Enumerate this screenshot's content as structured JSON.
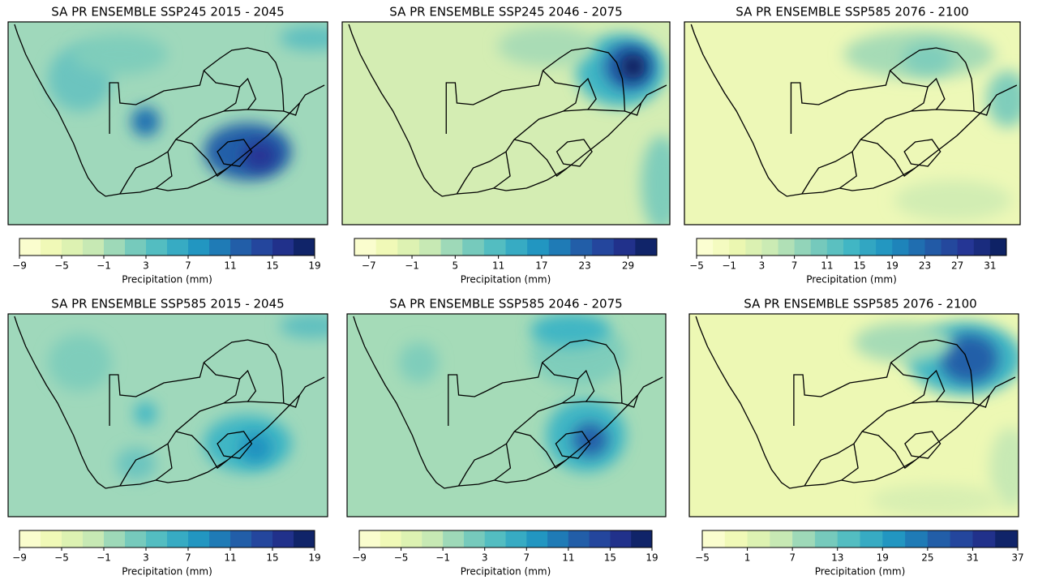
{
  "panels": [
    {
      "title": "SA PR ENSEMBLE SSP245 2015 - 2045",
      "colorbar": {
        "label": "Precipitation (mm)",
        "lim": [
          -9,
          19
        ],
        "ticks": [
          {
            "value": -9,
            "label": "−9"
          },
          {
            "value": -5,
            "label": "−5"
          },
          {
            "value": -1,
            "label": "−1"
          },
          3,
          7,
          11,
          15,
          19
        ],
        "colormap": "YlGnBu"
      }
    },
    {
      "title": "SA PR ENSEMBLE SSP245 2046 - 2075",
      "colorbar": {
        "label": "Precipitation (mm)",
        "lim": [
          -9,
          33
        ],
        "ticks": [
          {
            "value": -7,
            "label": "−7"
          },
          {
            "value": -1,
            "label": "−1"
          },
          5,
          11,
          17,
          23,
          29
        ],
        "colormap": "YlGnBu"
      }
    },
    {
      "title": "SA PR ENSEMBLE SSP585 2076 - 2100",
      "colorbar": {
        "label": "Precipitation (mm)",
        "lim": [
          -5,
          33
        ],
        "ticks": [
          {
            "value": -5,
            "label": "−5"
          },
          {
            "value": -1,
            "label": "−1"
          },
          3,
          7,
          11,
          15,
          19,
          23,
          27,
          31
        ],
        "colormap": "YlGnBu"
      }
    },
    {
      "title": "SA PR ENSEMBLE SSP585 2015 - 2045",
      "colorbar": {
        "label": "Precipitation (mm)",
        "lim": [
          -9,
          19
        ],
        "ticks": [
          {
            "value": -9,
            "label": "−9"
          },
          {
            "value": -5,
            "label": "−5"
          },
          {
            "value": -1,
            "label": "−1"
          },
          3,
          7,
          11,
          15,
          19
        ],
        "colormap": "YlGnBu"
      }
    },
    {
      "title": "SA PR ENSEMBLE SSP585 2046 - 2075",
      "colorbar": {
        "label": "Precipitation (mm)",
        "lim": [
          -9,
          19
        ],
        "ticks": [
          {
            "value": -9,
            "label": "−9"
          },
          {
            "value": -5,
            "label": "−5"
          },
          {
            "value": -1,
            "label": "−1"
          },
          3,
          7,
          11,
          15,
          19
        ],
        "colormap": "YlGnBu"
      }
    },
    {
      "title": "SA PR ENSEMBLE SSP585 2076 - 2100",
      "colorbar": {
        "label": "Precipitation (mm)",
        "lim": [
          -5,
          37
        ],
        "ticks": [
          {
            "value": -5,
            "label": "−5"
          },
          1,
          7,
          13,
          19,
          25,
          31,
          37
        ],
        "colormap": "YlGnBu"
      }
    }
  ]
}
